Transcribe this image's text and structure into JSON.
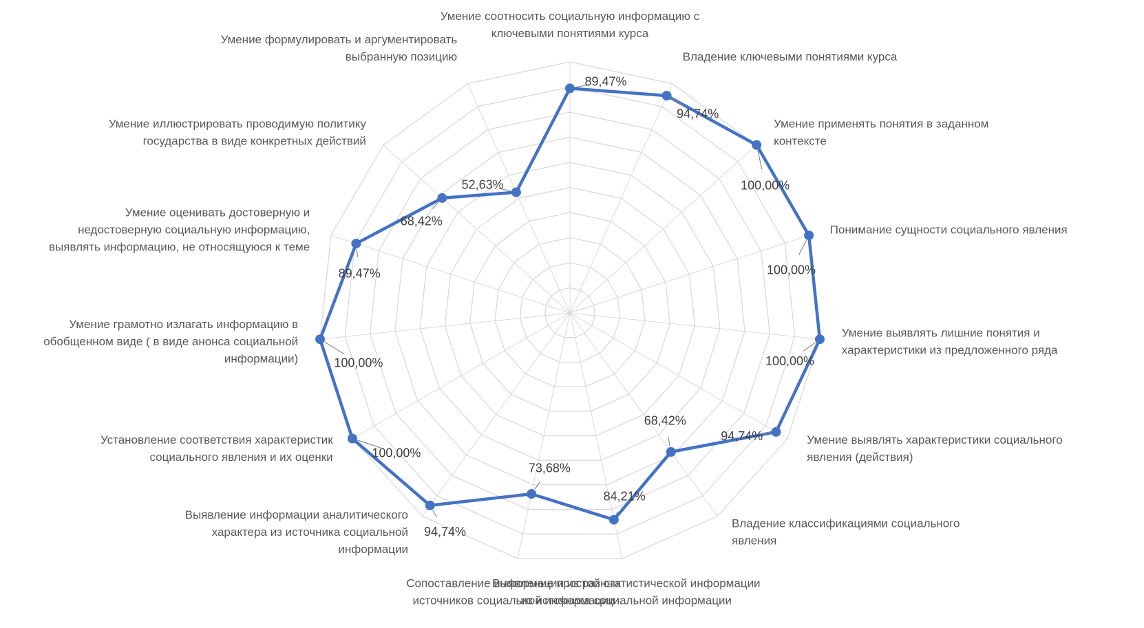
{
  "chart_data": {
    "type": "radar",
    "title": "",
    "grid": true,
    "max": 100,
    "ring_count": 10,
    "series": [
      {
        "color": "#4472c4",
        "values": [
          89.47,
          94.74,
          100.0,
          100.0,
          100.0,
          94.74,
          68.42,
          84.21,
          73.68,
          94.74,
          100.0,
          100.0,
          89.47,
          68.42,
          52.63
        ]
      }
    ],
    "value_labels": [
      "89,47%",
      "94,74%",
      "100,00%",
      "100,00%",
      "100,00%",
      "94,74%",
      "68,42%",
      "84,21%",
      "73,68%",
      "94,74%",
      "100,00%",
      "100,00%",
      "89,47%",
      "68,42%",
      "52,63%"
    ],
    "categories": [
      [
        "Умение соотносить социальную информацию с",
        "ключевыми понятиями курса"
      ],
      [
        "Владение ключевыми понятиями курса"
      ],
      [
        "Умение применять  понятия  в заданном",
        "контексте"
      ],
      [
        "Понимание сущности социального явления"
      ],
      [
        "Умение выявлять лишние понятия и",
        "характеристики из предложенного ряда"
      ],
      [
        "Умение выявлять  характеристики социального",
        "явления (действия)"
      ],
      [
        "Владение классификациями социального",
        "явления"
      ],
      [
        "Выявление простой статистической информации",
        "из  источника социальной информации"
      ],
      [
        "Сопоставление информации из  разных",
        "источников социальной информации"
      ],
      [
        "Выявление информации аналитического",
        "характера  из  источника социальной",
        "информации"
      ],
      [
        "Установление соответствия характеристик",
        "социального явления и их оценки"
      ],
      [
        "Умение грамотно излагать информацию в",
        "обобщенном виде ( в виде анонса социальной",
        "информации)"
      ],
      [
        "Умение оценивать достоверную и",
        "недостоверную  социальную   информацию,",
        "выявлять информацию, не относящуюся к  теме"
      ],
      [
        "Умение иллюстрировать проводимую политику",
        "государства  в виде конкретных действий"
      ],
      [
        "Умение формулировать и аргументировать",
        "выбранную позицию"
      ]
    ]
  }
}
